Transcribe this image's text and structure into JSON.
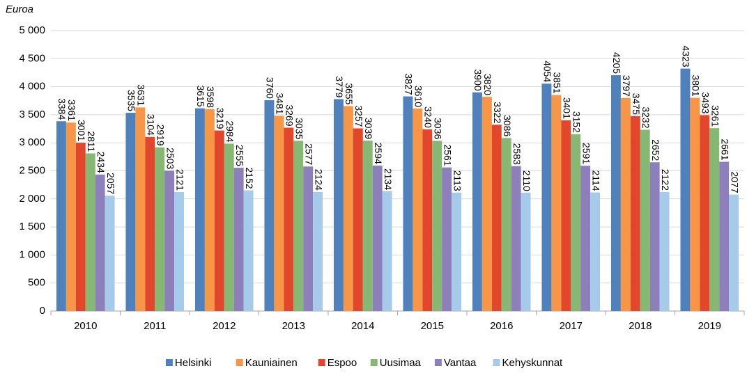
{
  "chart_data": {
    "type": "bar",
    "y_label": "Euroa",
    "categories": [
      "2010",
      "2011",
      "2012",
      "2013",
      "2014",
      "2015",
      "2016",
      "2017",
      "2018",
      "2019"
    ],
    "series": [
      {
        "name": "Helsinki",
        "color": "#4f81bd",
        "values": [
          3384,
          3535,
          3615,
          3760,
          3779,
          3827,
          3900,
          4054,
          4205,
          4323
        ]
      },
      {
        "name": "Kauniainen",
        "color": "#f79646",
        "values": [
          3361,
          3631,
          3598,
          3481,
          3655,
          3610,
          3820,
          3851,
          3797,
          3801
        ]
      },
      {
        "name": "Espoo",
        "color": "#e2472b",
        "values": [
          3001,
          3104,
          3219,
          3269,
          3257,
          3240,
          3322,
          3401,
          3475,
          3493
        ]
      },
      {
        "name": "Uusimaa",
        "color": "#86b873",
        "values": [
          2811,
          2919,
          2984,
          3035,
          3039,
          3036,
          3086,
          3152,
          3232,
          3261
        ]
      },
      {
        "name": "Vantaa",
        "color": "#8d7fba",
        "values": [
          2434,
          2503,
          2555,
          2577,
          2594,
          2561,
          2583,
          2591,
          2652,
          2661
        ]
      },
      {
        "name": "Kehyskunnat",
        "color": "#a6cbea",
        "values": [
          2057,
          2121,
          2152,
          2124,
          2134,
          2113,
          2110,
          2114,
          2122,
          2077
        ]
      }
    ],
    "ylim": [
      0,
      5000
    ],
    "yticks": [
      0,
      500,
      {
        "value": 1000,
        "label": "1 000"
      },
      {
        "value": 1500,
        "label": "1 500"
      },
      {
        "value": 2000,
        "label": "2 000"
      },
      {
        "value": 2500,
        "label": "2 500"
      },
      {
        "value": 3000,
        "label": "3 000"
      },
      {
        "value": 3500,
        "label": "3 500"
      },
      {
        "value": 4000,
        "label": "4 000"
      },
      {
        "value": 4500,
        "label": "4 500"
      },
      {
        "value": 5000,
        "label": "5 000"
      }
    ],
    "grid": true,
    "legend": "bottom"
  }
}
